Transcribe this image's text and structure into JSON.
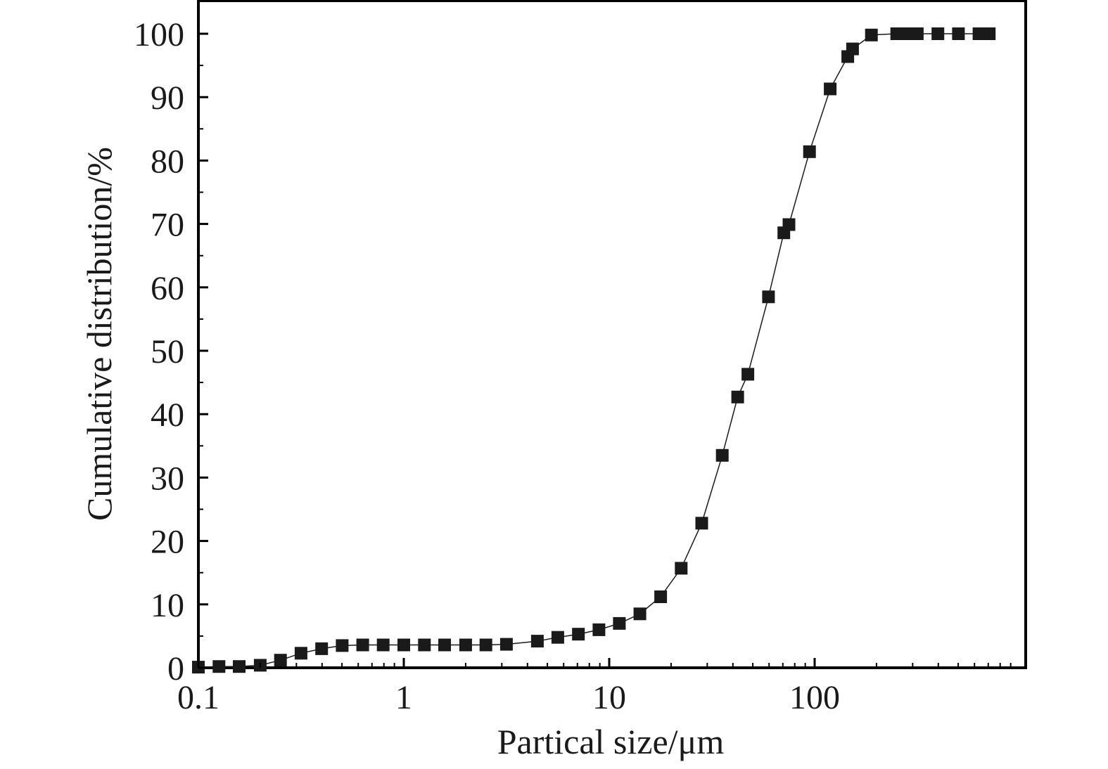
{
  "chart_data": {
    "type": "scatter",
    "title": "",
    "xlabel": "Partical size/μm",
    "ylabel": "Cumulative distribution/%",
    "x_scale": "log",
    "xlim": [
      0.1,
      1000
    ],
    "ylim": [
      0,
      100
    ],
    "x_ticks": [
      {
        "value": 0.1,
        "label": "0.1"
      },
      {
        "value": 1,
        "label": "1"
      },
      {
        "value": 10,
        "label": "10"
      },
      {
        "value": 100,
        "label": "100"
      }
    ],
    "y_ticks": [
      {
        "value": 0,
        "label": "0"
      },
      {
        "value": 10,
        "label": "10"
      },
      {
        "value": 20,
        "label": "20"
      },
      {
        "value": 30,
        "label": "30"
      },
      {
        "value": 40,
        "label": "40"
      },
      {
        "value": 50,
        "label": "50"
      },
      {
        "value": 60,
        "label": "60"
      },
      {
        "value": 70,
        "label": "70"
      },
      {
        "value": 80,
        "label": "80"
      },
      {
        "value": 90,
        "label": "90"
      },
      {
        "value": 100,
        "label": "100"
      }
    ],
    "grid": false,
    "marker": "filled-square",
    "line": "smooth connecting line",
    "colors": {
      "marker": "#1a1a1a",
      "line": "#1a1a1a",
      "axes": "#000000"
    },
    "series": [
      {
        "x": [
          0.1,
          0.126,
          0.158,
          0.2,
          0.251,
          0.316,
          0.398,
          0.501,
          0.631,
          0.794,
          1,
          1.26,
          1.58,
          2,
          2.51,
          3.16,
          4.47,
          5.62,
          7.08,
          8.91,
          11.2,
          14.1,
          17.8,
          22.4,
          28.2,
          35.5,
          42.2,
          47.3,
          59.6,
          70.8,
          75,
          94.4,
          119,
          145,
          153,
          189,
          251,
          282,
          316,
          398,
          501,
          631,
          708
        ],
        "y": [
          0.1,
          0.2,
          0.2,
          0.4,
          1.2,
          2.3,
          3.0,
          3.5,
          3.6,
          3.6,
          3.6,
          3.6,
          3.6,
          3.6,
          3.6,
          3.7,
          4.2,
          4.8,
          5.3,
          6.0,
          7.0,
          8.5,
          11.2,
          15.7,
          22.8,
          33.5,
          42.7,
          46.3,
          58.5,
          68.6,
          69.9,
          81.4,
          91.3,
          96.4,
          97.6,
          99.8,
          100,
          100,
          100,
          100,
          100,
          100,
          100
        ]
      }
    ]
  }
}
